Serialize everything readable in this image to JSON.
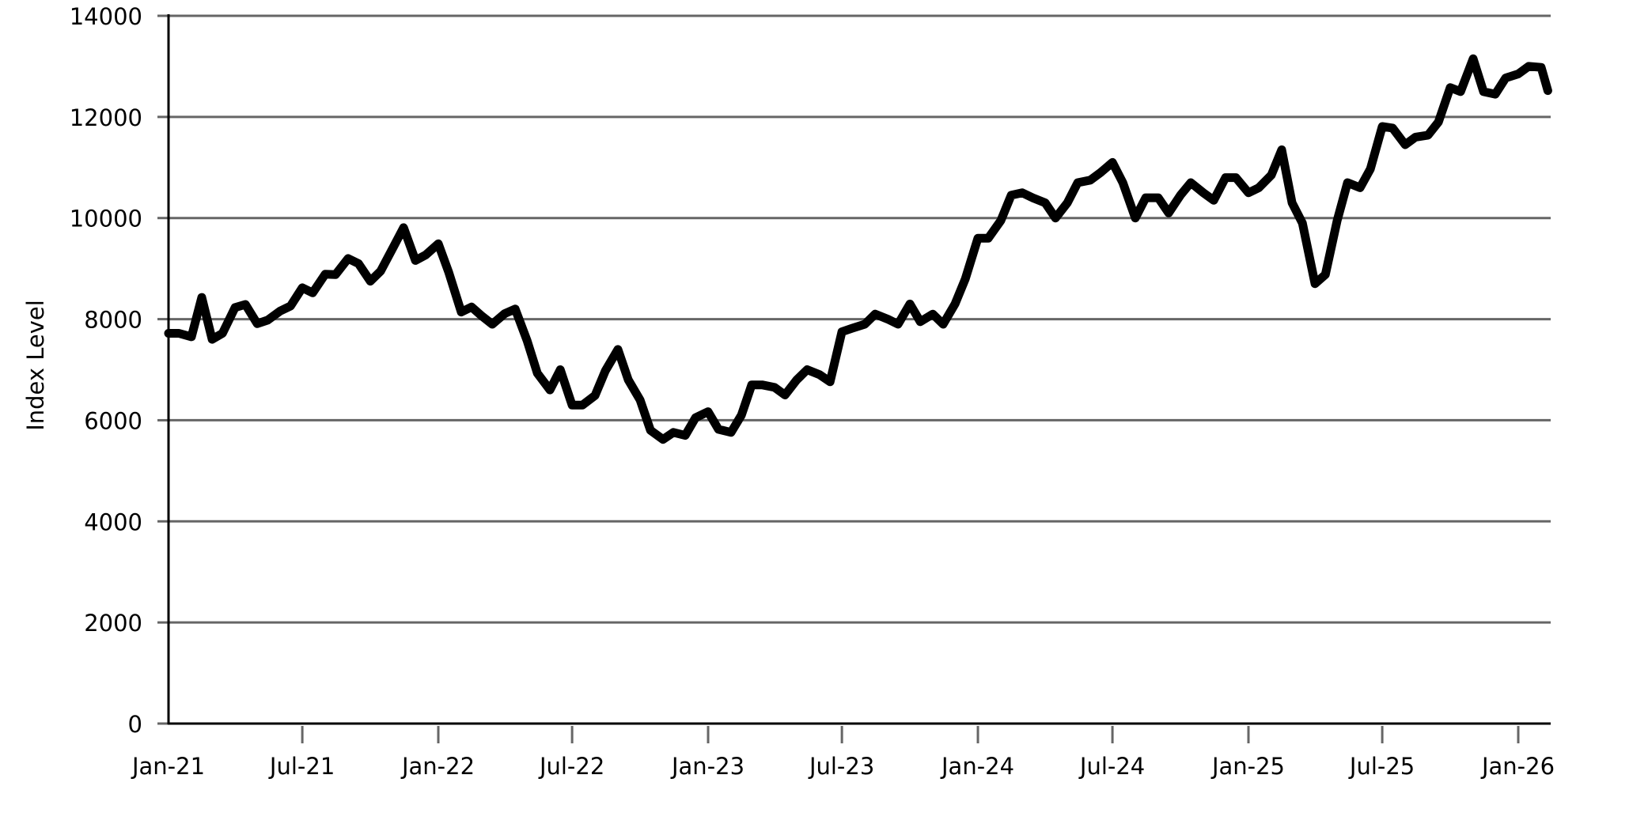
{
  "chart_data": {
    "type": "line",
    "title": "",
    "xlabel": "",
    "ylabel": "Index Level",
    "ylim": [
      0,
      14000
    ],
    "xlim": [
      "2021-01-01",
      "2026-02-10"
    ],
    "grid": "horizontal",
    "line_color": "#000000",
    "grid_color": "#666666",
    "y_ticks": [
      0,
      2000,
      4000,
      6000,
      8000,
      10000,
      12000,
      14000
    ],
    "x_ticks": [
      {
        "date": "2021-01-01",
        "label": "Jan-21"
      },
      {
        "date": "2021-07-01",
        "label": "Jul-21"
      },
      {
        "date": "2022-01-01",
        "label": "Jan-22"
      },
      {
        "date": "2022-07-01",
        "label": "Jul-22"
      },
      {
        "date": "2023-01-01",
        "label": "Jan-23"
      },
      {
        "date": "2023-07-01",
        "label": "Jul-23"
      },
      {
        "date": "2024-01-01",
        "label": "Jan-24"
      },
      {
        "date": "2024-07-01",
        "label": "Jul-24"
      },
      {
        "date": "2025-01-01",
        "label": "Jan-25"
      },
      {
        "date": "2025-07-01",
        "label": "Jul-25"
      },
      {
        "date": "2026-01-01",
        "label": "Jan-26"
      }
    ],
    "x": [
      "2021-01-01",
      "2021-01-15",
      "2021-02-01",
      "2021-02-15",
      "2021-03-01",
      "2021-03-15",
      "2021-04-01",
      "2021-04-15",
      "2021-05-01",
      "2021-05-15",
      "2021-06-01",
      "2021-06-15",
      "2021-07-01",
      "2021-07-15",
      "2021-08-01",
      "2021-08-15",
      "2021-09-01",
      "2021-09-15",
      "2021-10-01",
      "2021-10-15",
      "2021-11-01",
      "2021-11-15",
      "2021-12-01",
      "2021-12-15",
      "2022-01-01",
      "2022-01-15",
      "2022-02-01",
      "2022-02-15",
      "2022-03-01",
      "2022-03-15",
      "2022-04-01",
      "2022-04-15",
      "2022-05-01",
      "2022-05-15",
      "2022-06-01",
      "2022-06-15",
      "2022-07-01",
      "2022-07-15",
      "2022-08-01",
      "2022-08-15",
      "2022-09-01",
      "2022-09-15",
      "2022-10-01",
      "2022-10-15",
      "2022-11-01",
      "2022-11-15",
      "2022-12-01",
      "2022-12-15",
      "2023-01-01",
      "2023-01-15",
      "2023-02-01",
      "2023-02-15",
      "2023-03-01",
      "2023-03-15",
      "2023-04-01",
      "2023-04-15",
      "2023-05-01",
      "2023-05-15",
      "2023-06-01",
      "2023-06-15",
      "2023-07-01",
      "2023-07-15",
      "2023-08-01",
      "2023-08-15",
      "2023-09-01",
      "2023-09-15",
      "2023-10-01",
      "2023-10-15",
      "2023-11-01",
      "2023-11-15",
      "2023-12-01",
      "2023-12-15",
      "2024-01-01",
      "2024-01-15",
      "2024-02-01",
      "2024-02-15",
      "2024-03-01",
      "2024-03-15",
      "2024-04-01",
      "2024-04-15",
      "2024-05-01",
      "2024-05-15",
      "2024-06-01",
      "2024-06-15",
      "2024-07-01",
      "2024-07-15",
      "2024-08-01",
      "2024-08-15",
      "2024-09-01",
      "2024-09-15",
      "2024-10-01",
      "2024-10-15",
      "2024-11-01",
      "2024-11-15",
      "2024-12-01",
      "2024-12-15",
      "2025-01-01",
      "2025-01-15",
      "2025-02-01",
      "2025-02-15",
      "2025-03-01",
      "2025-03-15",
      "2025-04-01",
      "2025-04-15",
      "2025-05-01",
      "2025-05-15",
      "2025-06-01",
      "2025-06-15",
      "2025-07-01",
      "2025-07-15",
      "2025-08-01",
      "2025-08-15",
      "2025-09-01",
      "2025-09-15",
      "2025-10-01",
      "2025-10-15",
      "2025-11-01",
      "2025-11-15",
      "2025-12-01",
      "2025-12-15",
      "2026-01-01",
      "2026-01-15",
      "2026-02-01",
      "2026-02-10"
    ],
    "series": [
      {
        "values": [
          7720,
          7720,
          7650,
          8430,
          7600,
          7720,
          8230,
          8290,
          7910,
          7980,
          8160,
          8260,
          8620,
          8520,
          8890,
          8880,
          9200,
          9100,
          8750,
          8950,
          9420,
          9810,
          9160,
          9270,
          9490,
          8930,
          8140,
          8240,
          8060,
          7900,
          8110,
          8200,
          7580,
          6930,
          6600,
          7000,
          6300,
          6300,
          6490,
          6980,
          7400,
          6800,
          6400,
          5800,
          5620,
          5760,
          5700,
          6050,
          6170,
          5820,
          5760,
          6100,
          6700,
          6700,
          6650,
          6500,
          6800,
          7000,
          6900,
          6760,
          7750,
          7820,
          7900,
          8100,
          8000,
          7900,
          8300,
          7950,
          8100,
          7900,
          8300,
          8800,
          9600,
          9600,
          9950,
          10450,
          10500,
          10400,
          10300,
          10000,
          10300,
          10700,
          10750,
          10900,
          11100,
          10700,
          10000,
          10400,
          10400,
          10100,
          10450,
          10700,
          10500,
          10350,
          10800,
          10800,
          10500,
          10600,
          10850,
          11350,
          10300,
          9900,
          8700,
          8880,
          9950,
          10700,
          10600,
          10970,
          11810,
          11780,
          11450,
          11600,
          11640,
          11900,
          12580,
          12500,
          13150,
          12500,
          12450,
          12770,
          12850,
          13000,
          12980,
          12520
        ]
      }
    ]
  }
}
